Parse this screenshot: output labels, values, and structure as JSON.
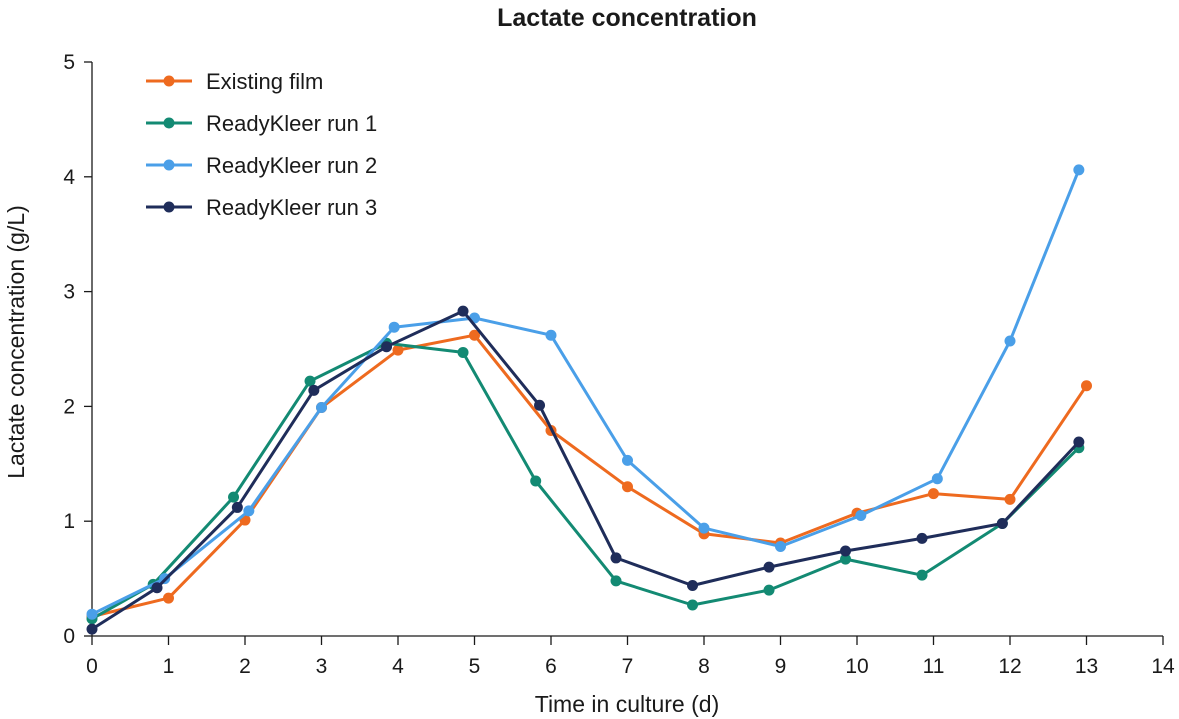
{
  "chart_data": {
    "type": "line",
    "title": "Lactate concentration",
    "xlabel": "Time in culture (d)",
    "ylabel": "Lactate concentration (g/L)",
    "xlim": [
      0,
      14
    ],
    "ylim": [
      0,
      5
    ],
    "x_ticks": [
      "0",
      "1",
      "2",
      "3",
      "4",
      "5",
      "6",
      "7",
      "8",
      "9",
      "10",
      "11",
      "12",
      "13",
      "14"
    ],
    "y_ticks": [
      "0",
      "1",
      "2",
      "3",
      "4",
      "5"
    ],
    "grid": false,
    "legend_position": "top-left",
    "series": [
      {
        "name": "Existing film",
        "color": "#ee6a1f",
        "x": [
          0,
          1,
          2,
          3,
          4,
          5,
          6,
          7,
          8,
          9,
          10,
          11,
          12,
          13
        ],
        "y": [
          0.17,
          0.33,
          1.01,
          1.99,
          2.49,
          2.62,
          1.79,
          1.3,
          0.89,
          0.81,
          1.07,
          1.24,
          1.19,
          2.18
        ]
      },
      {
        "name": "ReadyKleer run 1",
        "color": "#138a73",
        "x": [
          0,
          0.8,
          1.85,
          2.85,
          3.85,
          4.85,
          5.8,
          6.85,
          7.85,
          8.85,
          9.85,
          10.85,
          11.9,
          12.9
        ],
        "y": [
          0.15,
          0.45,
          1.21,
          2.22,
          2.55,
          2.47,
          1.35,
          0.48,
          0.27,
          0.4,
          0.67,
          0.53,
          0.98,
          1.64
        ]
      },
      {
        "name": "ReadyKleer run 2",
        "color": "#4a9fe8",
        "x": [
          0,
          0.95,
          2.05,
          3.0,
          3.95,
          5.0,
          6.0,
          7.0,
          8.0,
          9.0,
          10.05,
          11.05,
          12.0,
          12.9
        ],
        "y": [
          0.19,
          0.5,
          1.09,
          1.99,
          2.69,
          2.77,
          2.62,
          1.53,
          0.94,
          0.78,
          1.05,
          1.37,
          2.57,
          4.06
        ]
      },
      {
        "name": "ReadyKleer run 3",
        "color": "#1f2d5a",
        "x": [
          0,
          0.85,
          1.9,
          2.9,
          3.85,
          4.85,
          5.85,
          6.85,
          7.85,
          8.85,
          9.85,
          10.85,
          11.9,
          12.9
        ],
        "y": [
          0.06,
          0.42,
          1.12,
          2.14,
          2.52,
          2.83,
          2.01,
          0.68,
          0.44,
          0.6,
          0.74,
          0.85,
          0.98,
          1.69
        ]
      }
    ]
  }
}
